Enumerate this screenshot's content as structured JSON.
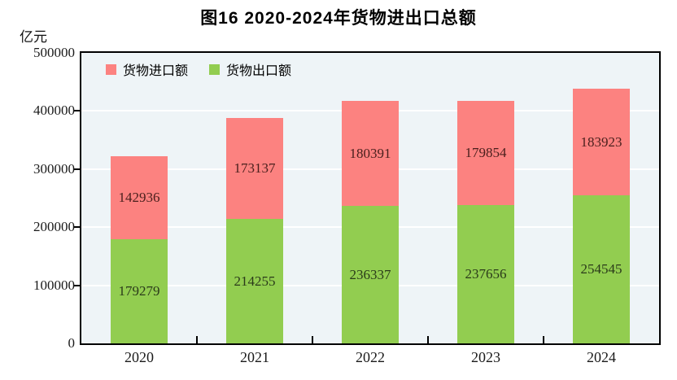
{
  "figure": {
    "title": "图16  2020-2024年货物进出口总额",
    "unit_label": "亿元"
  },
  "colors": {
    "import_bar": "#fc8280",
    "export_bar": "#92cd50",
    "plot_bg": "#eef4f7",
    "grid_line": "#ffffff",
    "axis_line": "#000000",
    "import_value_text": "#4a201d",
    "export_value_text": "#2a3a1a",
    "text": "#1a1a1a"
  },
  "chart_data": {
    "type": "bar",
    "stacked": true,
    "title": "图16  2020-2024年货物进出口总额",
    "ylabel": "亿元",
    "xlabel": "",
    "categories": [
      "2020",
      "2021",
      "2022",
      "2023",
      "2024"
    ],
    "series": [
      {
        "name": "货物进口额",
        "color": "#fc8280",
        "values": [
          142936,
          173137,
          180391,
          179854,
          183923
        ]
      },
      {
        "name": "货物出口额",
        "color": "#92cd50",
        "values": [
          179279,
          214255,
          236337,
          237656,
          254545
        ]
      }
    ],
    "ylim": [
      0,
      500000
    ],
    "yticks": [
      0,
      100000,
      200000,
      300000,
      400000,
      500000
    ],
    "grid": true,
    "legend_position": "top-left-inside",
    "value_labels": "inside-segment-center"
  }
}
